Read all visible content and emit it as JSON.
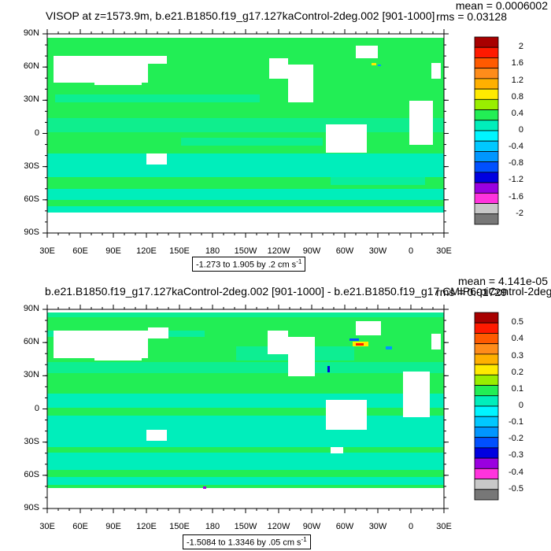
{
  "colors": {
    "ocean_zero": "#22ee55",
    "ocean_neg": "#00eebb",
    "land": "#ffffff"
  },
  "panels": [
    {
      "title": "VISOP at z=1573.9m, b.e21.B1850.f19_g17.127kaControl-2deg.002 [901-1000]",
      "mean": "mean = 0.0006002",
      "rms": "rms = 0.03128",
      "range": "-1.273 to 1.905 by .2 cm s",
      "range_sup": "-1",
      "lat_labels": [
        "90N",
        "60N",
        "30N",
        "0",
        "30S",
        "60S",
        "90S"
      ],
      "lon_labels": [
        "30E",
        "60E",
        "90E",
        "120E",
        "150E",
        "180",
        "150W",
        "120W",
        "90W",
        "60W",
        "30W",
        "0",
        "30E"
      ],
      "colorbar": {
        "labels": [
          "2",
          "1.6",
          "1.2",
          "0.8",
          "0.4",
          "0",
          "-0.4",
          "-0.8",
          "-1.2",
          "-1.6",
          "-2"
        ],
        "colors": [
          "#a80000",
          "#ff1a00",
          "#ff5a00",
          "#ff8c1a",
          "#ffb000",
          "#ffea00",
          "#99ee00",
          "#22ee55",
          "#00eebb",
          "#00f5ff",
          "#00c8ff",
          "#0096ff",
          "#0050ff",
          "#0000e0",
          "#9a00e0",
          "#ff33dd",
          "#c8c8c8",
          "#777777"
        ]
      }
    },
    {
      "title": "b.e21.B1850.f19_g17.127kaControl-2deg.002 [901-1000] - b.e21.B1850.f19_g17.CMIP6-piControl-2deg.",
      "mean": "mean = 4.141e-05",
      "rms": "rms = 0.01729",
      "range": "-1.5084 to 1.3346 by .05 cm s",
      "range_sup": "-1",
      "lat_labels": [
        "90N",
        "60N",
        "30N",
        "0",
        "30S",
        "60S",
        "90S"
      ],
      "lon_labels": [
        "30E",
        "60E",
        "90E",
        "120E",
        "150E",
        "180",
        "150W",
        "120W",
        "90W",
        "60W",
        "30W",
        "0",
        "30E"
      ],
      "colorbar": {
        "labels": [
          "0.5",
          "0.4",
          "0.3",
          "0.2",
          "0.1",
          "0",
          "-0.1",
          "-0.2",
          "-0.3",
          "-0.4",
          "-0.5"
        ],
        "colors": [
          "#a80000",
          "#ff1a00",
          "#ff5a00",
          "#ff8c1a",
          "#ffb000",
          "#ffea00",
          "#99ee00",
          "#22ee55",
          "#00eebb",
          "#00f5ff",
          "#00c8ff",
          "#0096ff",
          "#0050ff",
          "#0000e0",
          "#9a00e0",
          "#ff33dd",
          "#c8c8c8",
          "#777777"
        ]
      }
    }
  ]
}
